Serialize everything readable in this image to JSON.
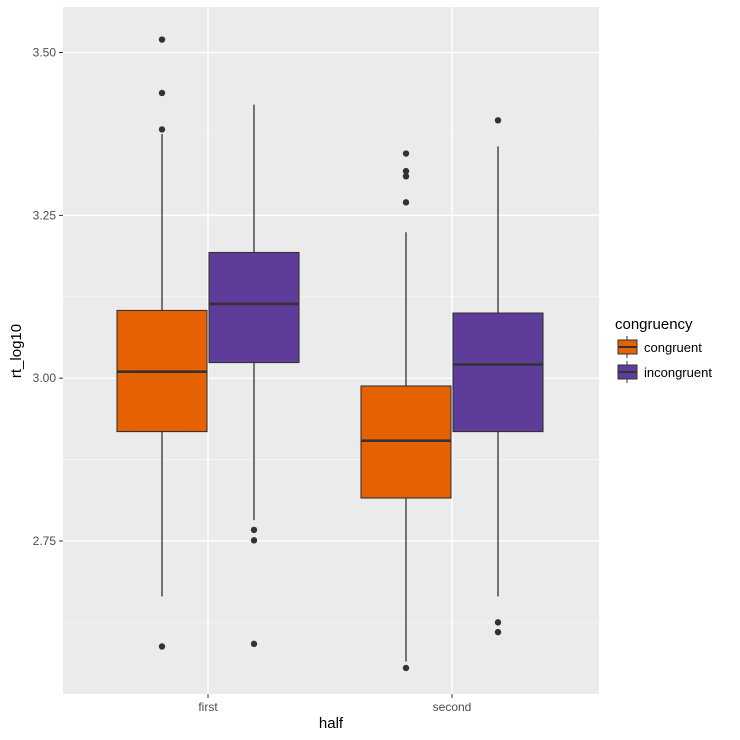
{
  "chart_data": {
    "type": "boxplot",
    "title": "",
    "xlabel": "half",
    "ylabel": "rt_log10",
    "categories": [
      "first",
      "second"
    ],
    "ylim": [
      2.515,
      3.57
    ],
    "y_ticks": [
      2.75,
      3.0,
      3.25,
      3.5
    ],
    "y_tick_labels": [
      "2.75",
      "3.00",
      "3.25",
      "3.50"
    ],
    "grid": true,
    "legend": {
      "title": "congruency",
      "position": "right",
      "entries": [
        "congruent",
        "incongruent"
      ]
    },
    "series": [
      {
        "name": "congruent",
        "color": "#e66101",
        "boxes": [
          {
            "category": "first",
            "whisker_low": 2.665,
            "q1": 2.918,
            "median": 3.01,
            "q3": 3.104,
            "whisker_high": 3.375,
            "outliers": [
              2.588,
              3.382,
              3.438,
              3.52
            ]
          },
          {
            "category": "second",
            "whisker_low": 2.565,
            "q1": 2.816,
            "median": 2.904,
            "q3": 2.988,
            "whisker_high": 3.224,
            "outliers": [
              2.555,
              3.27,
              3.31,
              3.318,
              3.345
            ]
          }
        ]
      },
      {
        "name": "incongruent",
        "color": "#5e3c99",
        "boxes": [
          {
            "category": "first",
            "whisker_low": 2.782,
            "q1": 3.024,
            "median": 3.114,
            "q3": 3.193,
            "whisker_high": 3.42,
            "outliers": [
              2.592,
              2.751,
              2.767
            ]
          },
          {
            "category": "second",
            "whisker_low": 2.665,
            "q1": 2.918,
            "median": 3.021,
            "q3": 3.1,
            "whisker_high": 3.356,
            "outliers": [
              2.61,
              2.625,
              3.396
            ]
          }
        ]
      }
    ]
  }
}
